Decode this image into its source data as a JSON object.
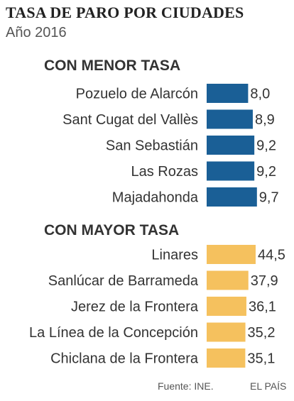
{
  "title": "TASA DE PARO POR CIUDADES",
  "subtitle": "Año 2016",
  "source": "Fuente: INE.",
  "brand": "EL PAÍS",
  "colors": {
    "low_bar": "#1a5f96",
    "high_bar": "#f5c15e",
    "text": "#333333"
  },
  "chart_data": [
    {
      "type": "bar",
      "orientation": "horizontal",
      "title": "CON MENOR TASA",
      "categories": [
        "Pozuelo de Alarcón",
        "Sant Cugat del Vallès",
        "San Sebastián",
        "Las Rozas",
        "Majadahonda"
      ],
      "values": [
        8.0,
        8.9,
        9.2,
        9.2,
        9.7
      ],
      "value_labels": [
        "8,0",
        "8,9",
        "9,2",
        "9,2",
        "9,7"
      ],
      "color": "#1a5f96",
      "grid": false
    },
    {
      "type": "bar",
      "orientation": "horizontal",
      "title": "CON MAYOR TASA",
      "categories": [
        "Linares",
        "Sanlúcar de Barrameda",
        "Jerez de la Frontera",
        "La Línea de la Concepción",
        "Chiclana de la Frontera"
      ],
      "values": [
        44.5,
        37.9,
        36.1,
        35.2,
        35.1
      ],
      "value_labels": [
        "44,5",
        "37,9",
        "36,1",
        "35,2",
        "35,1"
      ],
      "color": "#f5c15e",
      "grid": false
    }
  ]
}
